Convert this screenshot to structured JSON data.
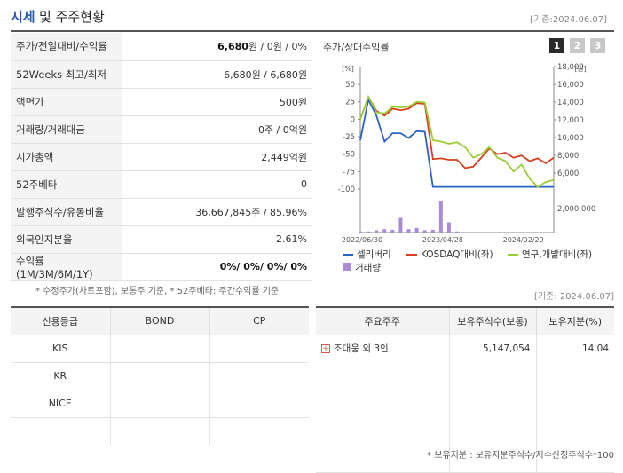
{
  "header": {
    "title_a": "시세",
    "title_b": "및 주주현황",
    "date": "[기준:2024.06.07]"
  },
  "info_rows": [
    {
      "label": "주가/전일대비/수익률",
      "value_bold": "6,680",
      "value": "원 / 0원 / 0%"
    },
    {
      "label": "52Weeks 최고/최저",
      "value_bold": "",
      "value": "6,680원 / 6,680원"
    },
    {
      "label": "액면가",
      "value_bold": "",
      "value": "500원"
    },
    {
      "label": "거래량/거래대금",
      "value_bold": "",
      "value": "0주 / 0억원"
    },
    {
      "label": "시가총액",
      "value_bold": "",
      "value": "2,449억원"
    },
    {
      "label": "52주베타",
      "value_bold": "",
      "value": "0"
    },
    {
      "label": "발행주식수/유동비율",
      "value_bold": "",
      "value": "36,667,845주 / 85.96%"
    },
    {
      "label": "외국인지분율",
      "value_bold": "",
      "value": "2.61%"
    },
    {
      "label": "수익률 (1M/3M/6M/1Y)",
      "value_bold": "0%/ 0%/ 0%/ 0%",
      "value": ""
    }
  ],
  "footnote1": "* 수정주가(차트포함), 보통주 기준, * 52주베타: 주간수익률 기준",
  "chart_panel": {
    "title": "주가/상대수익률",
    "tabs": [
      "1",
      "2",
      "3"
    ]
  },
  "chart_data": {
    "type": "line",
    "x_ticks": [
      "2022/06/30",
      "2023/04/28",
      "2024/02/29"
    ],
    "y_left_unit": "[%]",
    "y_left_ticks": [
      "50",
      "25",
      "0",
      "-25",
      "-50",
      "-75",
      "-100"
    ],
    "y_right_unit": "[원]",
    "y_right_ticks": [
      "18,000",
      "16,000",
      "14,000",
      "12,000",
      "10,000",
      "8,000",
      "6,000"
    ],
    "volume_tick": "2,000,000",
    "ylim_left": [
      -100,
      50
    ],
    "series": [
      {
        "name": "셀리버리",
        "color": "#2a62c4",
        "values": [
          -30,
          28,
          5,
          -32,
          -20,
          -20,
          -27,
          -17,
          -18,
          -97,
          -97,
          -97,
          -97,
          -97,
          -97,
          -97,
          -97,
          -97,
          -97,
          -97,
          -97,
          -97,
          -97,
          -97,
          -97
        ]
      },
      {
        "name": "KOSDAQ대비(좌)",
        "color": "#d9401f",
        "values": [
          0,
          32,
          12,
          5,
          15,
          13,
          15,
          23,
          22,
          -57,
          -56,
          -58,
          -58,
          -70,
          -68,
          -55,
          -42,
          -50,
          -48,
          -55,
          -52,
          -60,
          -56,
          -63,
          -55
        ]
      },
      {
        "name": "연구,개발대비(좌)",
        "color": "#9ccc35",
        "values": [
          0,
          32,
          10,
          8,
          18,
          17,
          18,
          25,
          24,
          -30,
          -32,
          -35,
          -33,
          -40,
          -55,
          -50,
          -40,
          -55,
          -60,
          -75,
          -65,
          -85,
          -97,
          -90,
          -87
        ]
      }
    ],
    "volume": {
      "name": "거래량",
      "color": "#a98bd6",
      "values": [
        0.05,
        0.05,
        0.1,
        0.15,
        0.12,
        0.65,
        0.15,
        0.2,
        0.1,
        0.12,
        1.4,
        0.45,
        0.05,
        0,
        0,
        0,
        0,
        0,
        0,
        0,
        0,
        0,
        0,
        0,
        0
      ]
    }
  },
  "date2": "[기준: 2024.06.07]",
  "credit": {
    "headers": [
      "신용등급",
      "BOND",
      "CP"
    ],
    "rows": [
      [
        "KIS",
        "",
        ""
      ],
      [
        "KR",
        "",
        ""
      ],
      [
        "NICE",
        "",
        ""
      ],
      [
        "",
        "",
        ""
      ]
    ]
  },
  "holders": {
    "headers": [
      "주요주주",
      "보유주식수(보통)",
      "보유지분(%)"
    ],
    "rows": [
      [
        "조대웅 외 3인",
        "5,147,054",
        "14.04"
      ]
    ]
  },
  "footnote2": "* 보유지분 : 보유지분주식수/지수산정주식수*100"
}
